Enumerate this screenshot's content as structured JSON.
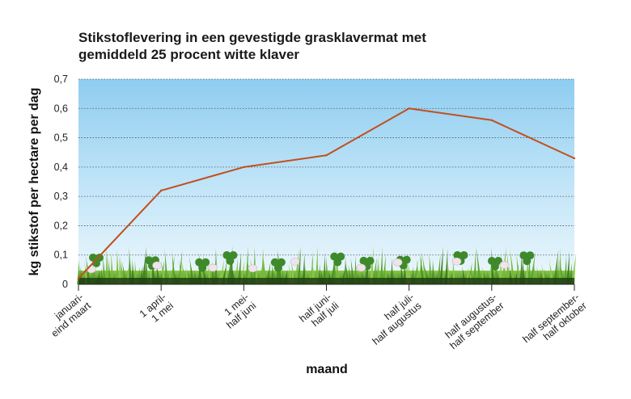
{
  "chart_data": {
    "type": "line",
    "title_lines": [
      "Stikstoflevering in een gevestigde grasklavermat met",
      "gemiddeld 25 procent witte klaver"
    ],
    "xlabel": "maand",
    "ylabel": "kg stikstof per hectare per dag",
    "categories": [
      [
        "januari-",
        "eind maart"
      ],
      [
        "1 april-",
        "1 mei"
      ],
      [
        "1 mei-",
        "half juni"
      ],
      [
        "half juni-",
        "half juli"
      ],
      [
        "half juli-",
        "half augustus"
      ],
      [
        "half augustus-",
        "half september"
      ],
      [
        "half september-",
        "half oktober"
      ]
    ],
    "series": [
      {
        "values": [
          0.02,
          0.32,
          0.4,
          0.44,
          0.6,
          0.56,
          0.43
        ],
        "color": "#c0501e"
      }
    ],
    "ylim": [
      0,
      0.7
    ],
    "yticks": [
      "0",
      "0,1",
      "0,2",
      "0,3",
      "0,4",
      "0,5",
      "0,6",
      "0,7"
    ],
    "grid": true,
    "background": "sky gradient with grass and clover illustration along bottom"
  }
}
